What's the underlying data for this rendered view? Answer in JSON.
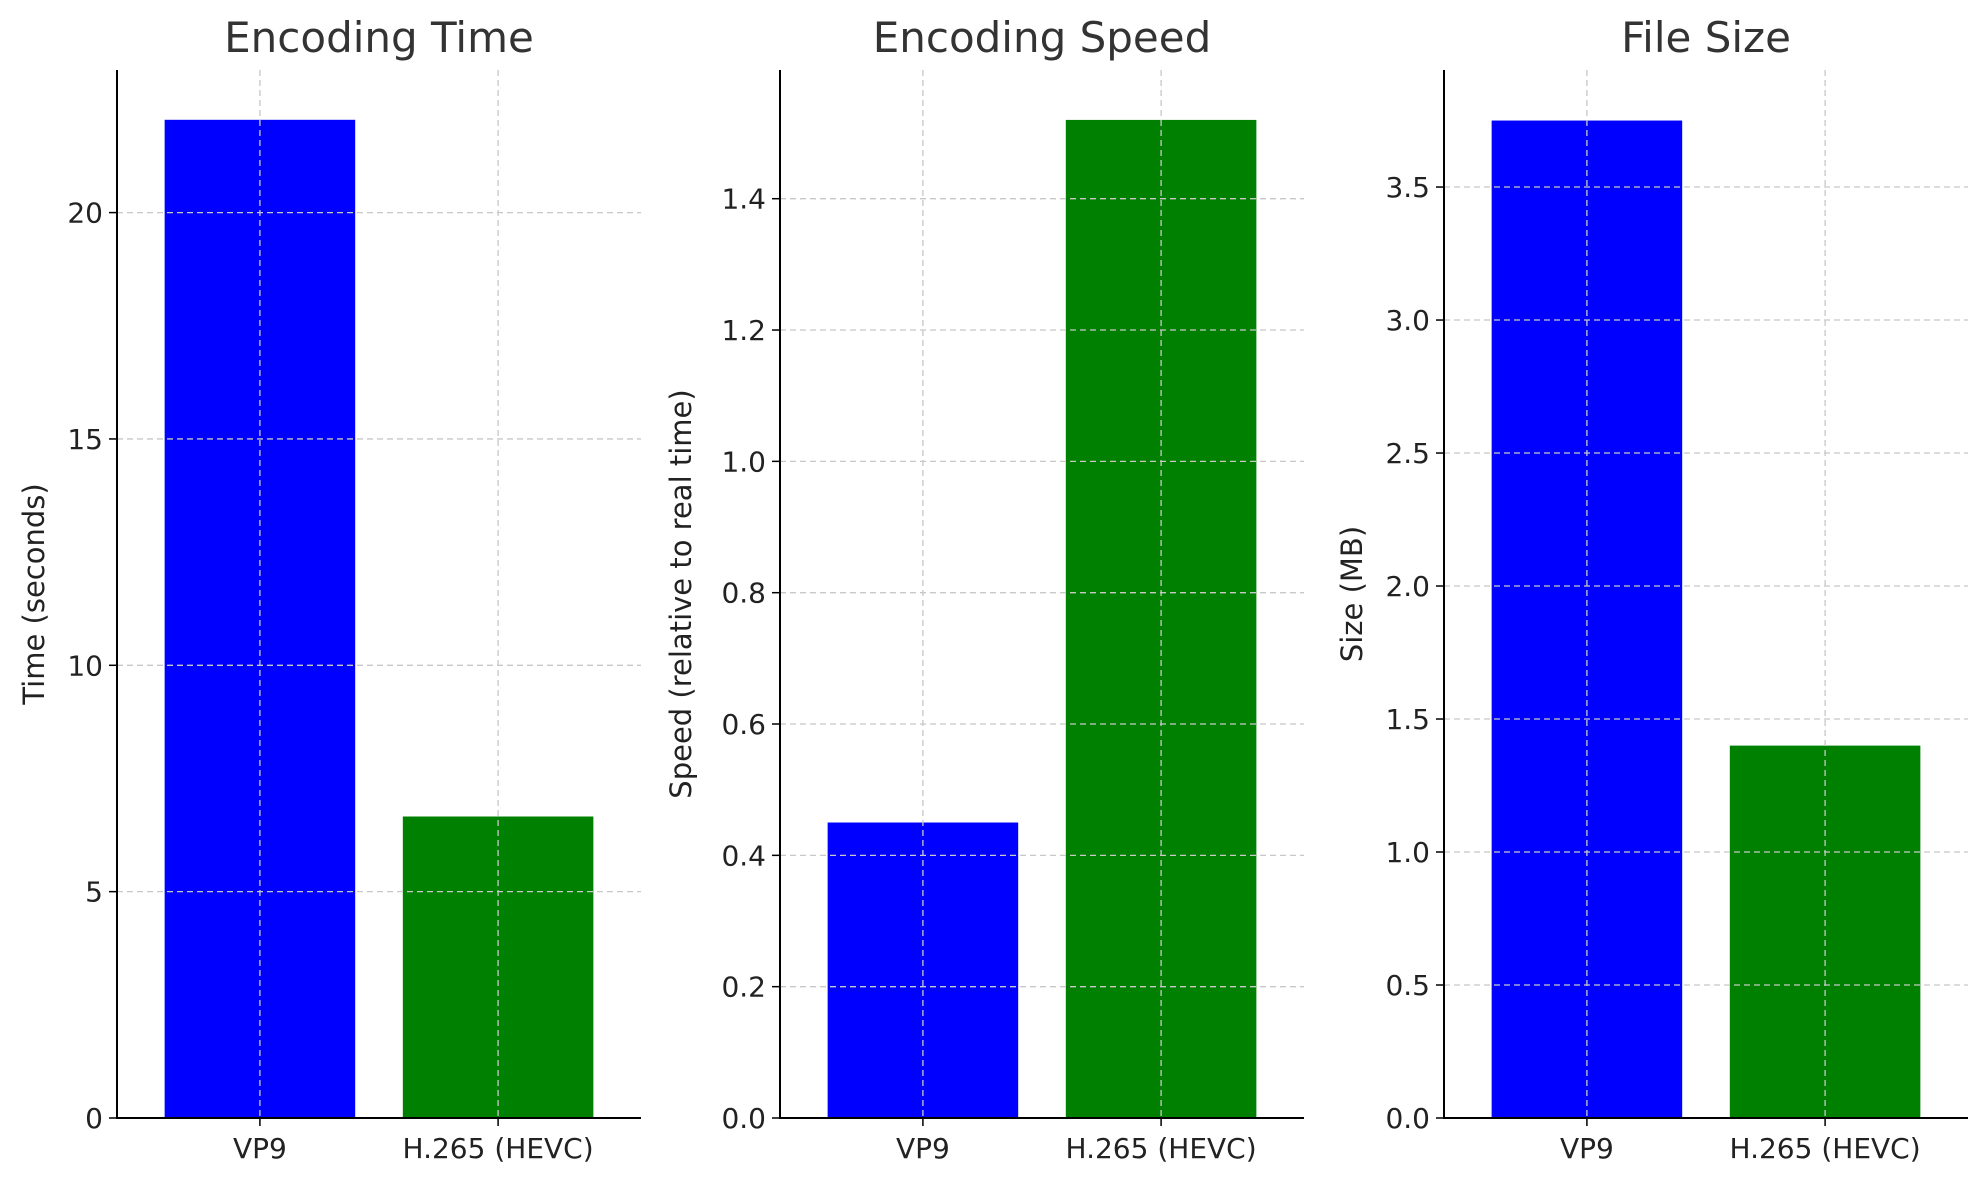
{
  "chart_data": [
    {
      "type": "bar",
      "title": "Encoding Time",
      "ylabel": "Time (seconds)",
      "categories": [
        "VP9",
        "H.265 (HEVC)"
      ],
      "values": [
        22.05,
        6.66
      ],
      "colors": [
        "#0000ff",
        "#008000"
      ],
      "ylim": [
        0,
        23.15
      ],
      "yticks": [
        0,
        5,
        10,
        15,
        20
      ],
      "ytick_labels": [
        "0",
        "5",
        "10",
        "15",
        "20"
      ],
      "grid": true
    },
    {
      "type": "bar",
      "title": "Encoding Speed",
      "ylabel": "Speed (relative to real time)",
      "categories": [
        "VP9",
        "H.265 (HEVC)"
      ],
      "values": [
        0.45,
        1.52
      ],
      "colors": [
        "#0000ff",
        "#008000"
      ],
      "ylim": [
        0,
        1.596
      ],
      "yticks": [
        0.0,
        0.2,
        0.4,
        0.6,
        0.8,
        1.0,
        1.2,
        1.4
      ],
      "ytick_labels": [
        "0.0",
        "0.2",
        "0.4",
        "0.6",
        "0.8",
        "1.0",
        "1.2",
        "1.4"
      ],
      "grid": true
    },
    {
      "type": "bar",
      "title": "File Size",
      "ylabel": "Size (MB)",
      "categories": [
        "VP9",
        "H.265 (HEVC)"
      ],
      "values": [
        3.75,
        1.4
      ],
      "colors": [
        "#0000ff",
        "#008000"
      ],
      "ylim": [
        0,
        3.94
      ],
      "yticks": [
        0.0,
        0.5,
        1.0,
        1.5,
        2.0,
        2.5,
        3.0,
        3.5
      ],
      "ytick_labels": [
        "0.0",
        "0.5",
        "1.0",
        "1.5",
        "2.0",
        "2.5",
        "3.0",
        "3.5"
      ],
      "grid": true
    }
  ]
}
